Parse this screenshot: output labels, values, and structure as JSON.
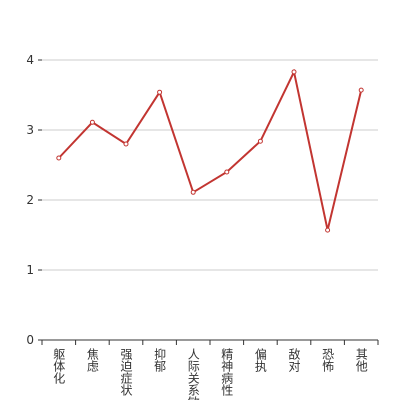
{
  "chart_data": {
    "type": "line",
    "categories": [
      "躯体化",
      "焦虑",
      "强迫症状",
      "抑郁",
      "人际关系敏感",
      "精神病性",
      "偏执",
      "敌对",
      "恐怖",
      "其他"
    ],
    "values": [
      2.6,
      3.11,
      2.8,
      3.54,
      2.11,
      2.4,
      2.84,
      3.83,
      1.57,
      3.57
    ],
    "color": "#c23531",
    "ylim": [
      0,
      4
    ],
    "yticks": [
      0,
      1,
      2,
      3,
      4
    ],
    "grid": true
  }
}
